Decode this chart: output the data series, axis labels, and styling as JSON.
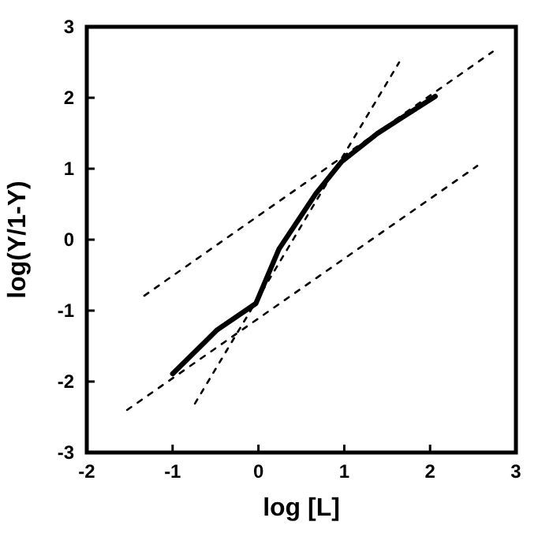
{
  "chart_data": {
    "type": "line",
    "xlabel": "log [L]",
    "ylabel": "log(Y/1-Y)",
    "xlim": [
      -2,
      3
    ],
    "ylim": [
      -3,
      3
    ],
    "xticks": [
      -2,
      -1,
      0,
      1,
      2,
      3
    ],
    "yticks": [
      -3,
      -2,
      -1,
      0,
      1,
      2,
      3
    ],
    "grid": false,
    "marker": "none",
    "series": [
      {
        "color": "#000000",
        "line_style": "solid",
        "x": [
          -1,
          -0.48,
          -0.03,
          0.24,
          0.67,
          0.97,
          1.39,
          2.06
        ],
        "values": [
          -1.89,
          -1.27,
          -0.9,
          -0.13,
          0.65,
          1.1,
          1.5,
          2.02
        ]
      },
      {
        "color": "#000000",
        "line_style": "dashed",
        "x": [
          -1.33,
          2.73
        ],
        "values": [
          -0.79,
          2.65
        ]
      },
      {
        "color": "#000000",
        "line_style": "dashed",
        "x": [
          -1.53,
          2.55
        ],
        "values": [
          -2.4,
          1.04
        ]
      },
      {
        "color": "#000000",
        "line_style": "dashed",
        "x": [
          -0.74,
          1.64
        ],
        "values": [
          -2.31,
          2.5
        ]
      }
    ]
  }
}
